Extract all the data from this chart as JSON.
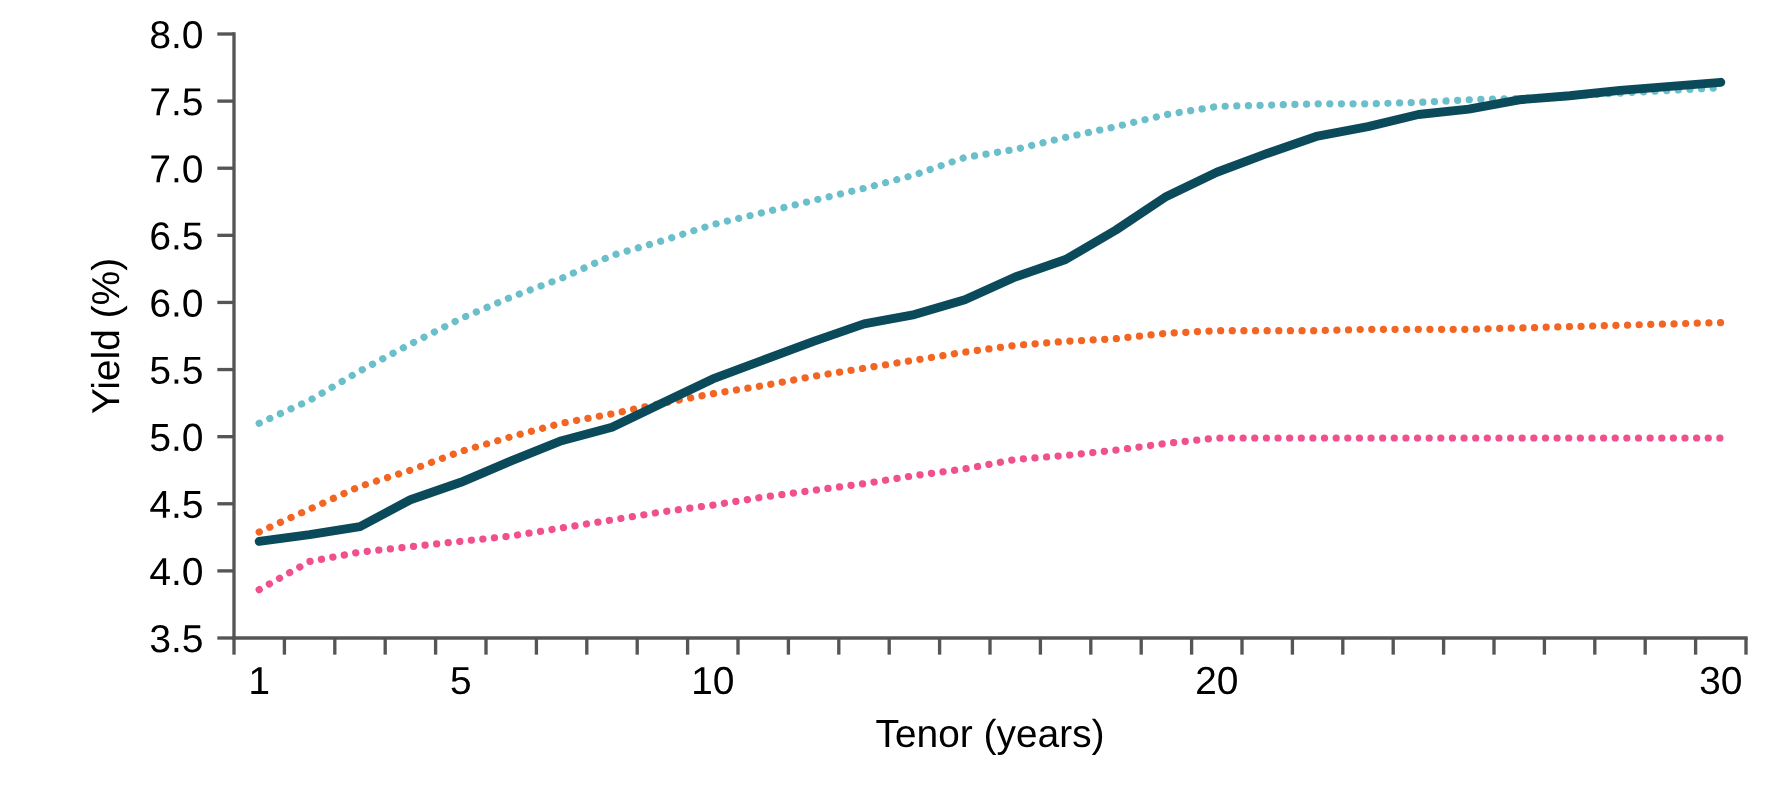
{
  "chart_data": {
    "type": "line",
    "xlabel": "Tenor (years)",
    "ylabel": "Yield (%)",
    "categories": [
      "1",
      null,
      null,
      null,
      "5",
      null,
      null,
      null,
      null,
      "10",
      null,
      null,
      null,
      null,
      null,
      null,
      null,
      null,
      null,
      "20",
      null,
      null,
      null,
      null,
      null,
      null,
      null,
      null,
      null,
      "30"
    ],
    "ylim": [
      3.5,
      8.0
    ],
    "yticks": [
      {
        "value": 3.5,
        "label": "3.5"
      },
      {
        "value": 4,
        "label": "4.0"
      },
      4.5,
      {
        "value": 5,
        "label": "5.0"
      },
      5.5,
      {
        "value": 6,
        "label": "6.0"
      },
      6.5,
      {
        "value": 7,
        "label": "7.0"
      },
      7.5,
      {
        "value": 8,
        "label": "8.0"
      }
    ],
    "grid": false,
    "series": [
      {
        "color": "#6bbfca",
        "line_style": "dotted",
        "values": [
          5.1,
          5.27,
          5.49,
          5.69,
          5.88,
          6.04,
          6.18,
          6.35,
          6.46,
          6.58,
          6.67,
          6.76,
          6.85,
          6.95,
          7.08,
          7.14,
          7.23,
          7.31,
          7.4,
          7.46,
          7.47,
          7.48,
          7.48,
          7.49,
          7.51,
          7.52,
          7.54,
          7.56,
          7.58,
          7.6
        ]
      },
      {
        "color": "#f26522",
        "line_style": "dotted",
        "values": [
          4.29,
          4.46,
          4.63,
          4.75,
          4.89,
          5.0,
          5.1,
          5.17,
          5.25,
          5.32,
          5.38,
          5.45,
          5.51,
          5.57,
          5.63,
          5.68,
          5.71,
          5.73,
          5.77,
          5.79,
          5.79,
          5.79,
          5.8,
          5.8,
          5.8,
          5.81,
          5.82,
          5.83,
          5.84,
          5.85
        ]
      },
      {
        "color": "#f0508c",
        "line_style": "dotted",
        "values": [
          3.86,
          4.07,
          4.14,
          4.18,
          4.22,
          4.26,
          4.32,
          4.38,
          4.44,
          4.49,
          4.55,
          4.6,
          4.65,
          4.71,
          4.76,
          4.83,
          4.86,
          4.9,
          4.95,
          4.99,
          4.99,
          4.99,
          4.99,
          4.99,
          4.99,
          4.99,
          4.99,
          4.99,
          4.99,
          4.99
        ]
      },
      {
        "color": "#0b4a5a",
        "line_style": "solid",
        "values": [
          4.22,
          4.27,
          4.33,
          4.53,
          4.66,
          4.82,
          4.97,
          5.07,
          5.25,
          5.43,
          5.57,
          5.71,
          5.84,
          5.91,
          6.02,
          6.19,
          6.32,
          6.54,
          6.79,
          6.97,
          7.11,
          7.24,
          7.31,
          7.4,
          7.44,
          7.51,
          7.54,
          7.58,
          7.61,
          7.64
        ]
      }
    ]
  }
}
